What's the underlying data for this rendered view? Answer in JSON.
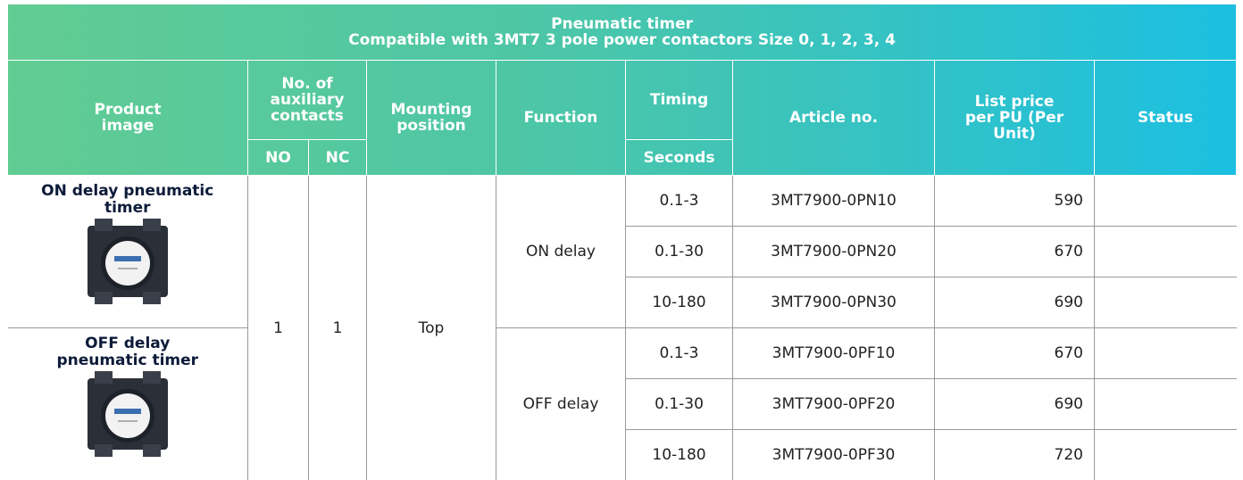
{
  "table": {
    "title": "Pneumatic timer",
    "subtitle": "Compatible with 3MT7 3 pole power contactors Size 0, 1, 2, 3, 4",
    "header": {
      "product_image": "Product image",
      "aux_contacts": "No. of auxiliary contacts",
      "no": "NO",
      "nc": "NC",
      "mounting": "Mounting position",
      "function": "Function",
      "timing": "Timing",
      "seconds": "Seconds",
      "article": "Article no.",
      "price": "List price per PU (Per Unit)",
      "status": "Status"
    },
    "no_value": 1,
    "nc_value": 1,
    "mounting_value": "Top",
    "groups": [
      {
        "product": "ON delay pneumatic timer",
        "function": "ON delay",
        "rows": [
          {
            "timing": "0.1-3",
            "article": "3MT7900-0PN10",
            "price": 590
          },
          {
            "timing": "0.1-30",
            "article": "3MT7900-0PN20",
            "price": 670
          },
          {
            "timing": "10-180",
            "article": "3MT7900-0PN30",
            "price": 690
          }
        ]
      },
      {
        "product": "OFF delay pneumatic timer",
        "function": "OFF delay",
        "rows": [
          {
            "timing": "0.1-3",
            "article": "3MT7900-0PF10",
            "price": 670
          },
          {
            "timing": "0.1-30",
            "article": "3MT7900-0PF20",
            "price": 690
          },
          {
            "timing": "10-180",
            "article": "3MT7900-0PF30",
            "price": 720
          }
        ]
      }
    ]
  }
}
